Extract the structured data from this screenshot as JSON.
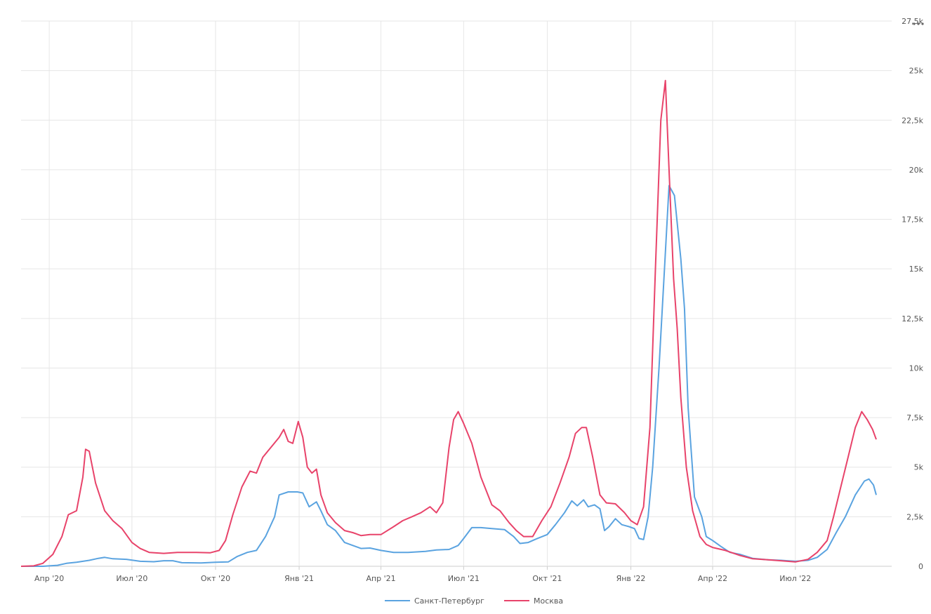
{
  "chart_data": {
    "type": "line",
    "grid": true,
    "legend_position": "bottom-center",
    "ylim": [
      0,
      27500
    ],
    "y_ticks": [
      {
        "value": 0,
        "label": "0"
      },
      {
        "value": 2500,
        "label": "2,5k"
      },
      {
        "value": 5000,
        "label": "5k"
      },
      {
        "value": 7500,
        "label": "7,5k"
      },
      {
        "value": 10000,
        "label": "10k"
      },
      {
        "value": 12500,
        "label": "12,5k"
      },
      {
        "value": 15000,
        "label": "15k"
      },
      {
        "value": 17500,
        "label": "17,5k"
      },
      {
        "value": 20000,
        "label": "20k"
      },
      {
        "value": 22500,
        "label": "22,5k"
      },
      {
        "value": 25000,
        "label": "25k"
      },
      {
        "value": 27500,
        "label": "27,5k"
      }
    ],
    "x_range": [
      "2020-03-01",
      "2022-10-15"
    ],
    "x_ticks": [
      {
        "date": "2020-04-01",
        "label": "Апр '20"
      },
      {
        "date": "2020-07-01",
        "label": "Июл '20"
      },
      {
        "date": "2020-10-01",
        "label": "Окт '20"
      },
      {
        "date": "2021-01-01",
        "label": "Янв '21"
      },
      {
        "date": "2021-04-01",
        "label": "Апр '21"
      },
      {
        "date": "2021-07-01",
        "label": "Июл '21"
      },
      {
        "date": "2021-10-01",
        "label": "Окт '21"
      },
      {
        "date": "2022-01-01",
        "label": "Янв '22"
      },
      {
        "date": "2022-04-01",
        "label": "Апр '22"
      },
      {
        "date": "2022-07-01",
        "label": "Июл '22"
      }
    ],
    "series": [
      {
        "name": "Санкт-Петербург",
        "color": "#5aa3e0",
        "points": [
          [
            "2020-03-01",
            0
          ],
          [
            "2020-03-25",
            0
          ],
          [
            "2020-04-10",
            50
          ],
          [
            "2020-04-20",
            150
          ],
          [
            "2020-05-01",
            200
          ],
          [
            "2020-05-15",
            300
          ],
          [
            "2020-05-25",
            400
          ],
          [
            "2020-06-01",
            450
          ],
          [
            "2020-06-10",
            380
          ],
          [
            "2020-06-25",
            350
          ],
          [
            "2020-07-10",
            250
          ],
          [
            "2020-07-25",
            230
          ],
          [
            "2020-08-05",
            280
          ],
          [
            "2020-08-15",
            280
          ],
          [
            "2020-08-25",
            180
          ],
          [
            "2020-09-15",
            170
          ],
          [
            "2020-10-01",
            200
          ],
          [
            "2020-10-15",
            220
          ],
          [
            "2020-10-25",
            500
          ],
          [
            "2020-11-05",
            700
          ],
          [
            "2020-11-15",
            800
          ],
          [
            "2020-11-25",
            1500
          ],
          [
            "2020-12-05",
            2500
          ],
          [
            "2020-12-10",
            3600
          ],
          [
            "2020-12-20",
            3750
          ],
          [
            "2020-12-30",
            3750
          ],
          [
            "2021-01-05",
            3700
          ],
          [
            "2021-01-12",
            3000
          ],
          [
            "2021-01-20",
            3250
          ],
          [
            "2021-01-25",
            2800
          ],
          [
            "2021-02-01",
            2100
          ],
          [
            "2021-02-10",
            1800
          ],
          [
            "2021-02-20",
            1200
          ],
          [
            "2021-03-01",
            1050
          ],
          [
            "2021-03-10",
            900
          ],
          [
            "2021-03-20",
            920
          ],
          [
            "2021-04-01",
            800
          ],
          [
            "2021-04-15",
            700
          ],
          [
            "2021-05-01",
            700
          ],
          [
            "2021-05-20",
            750
          ],
          [
            "2021-06-01",
            820
          ],
          [
            "2021-06-15",
            850
          ],
          [
            "2021-06-25",
            1050
          ],
          [
            "2021-07-01",
            1400
          ],
          [
            "2021-07-10",
            1950
          ],
          [
            "2021-07-20",
            1950
          ],
          [
            "2021-08-01",
            1900
          ],
          [
            "2021-08-15",
            1850
          ],
          [
            "2021-08-25",
            1500
          ],
          [
            "2021-09-01",
            1150
          ],
          [
            "2021-09-10",
            1200
          ],
          [
            "2021-09-20",
            1400
          ],
          [
            "2021-10-01",
            1600
          ],
          [
            "2021-10-10",
            2100
          ],
          [
            "2021-10-20",
            2700
          ],
          [
            "2021-10-28",
            3300
          ],
          [
            "2021-11-03",
            3050
          ],
          [
            "2021-11-10",
            3350
          ],
          [
            "2021-11-15",
            3000
          ],
          [
            "2021-11-22",
            3100
          ],
          [
            "2021-11-28",
            2900
          ],
          [
            "2021-12-03",
            1800
          ],
          [
            "2021-12-08",
            2000
          ],
          [
            "2021-12-15",
            2400
          ],
          [
            "2021-12-22",
            2100
          ],
          [
            "2021-12-30",
            2000
          ],
          [
            "2022-01-05",
            1900
          ],
          [
            "2022-01-10",
            1400
          ],
          [
            "2022-01-15",
            1350
          ],
          [
            "2022-01-20",
            2500
          ],
          [
            "2022-01-25",
            5000
          ],
          [
            "2022-02-01",
            10000
          ],
          [
            "2022-02-07",
            15000
          ],
          [
            "2022-02-12",
            19200
          ],
          [
            "2022-02-18",
            18700
          ],
          [
            "2022-02-25",
            15500
          ],
          [
            "2022-03-01",
            13000
          ],
          [
            "2022-03-05",
            8000
          ],
          [
            "2022-03-12",
            3500
          ],
          [
            "2022-03-20",
            2500
          ],
          [
            "2022-03-25",
            1500
          ],
          [
            "2022-04-01",
            1300
          ],
          [
            "2022-04-10",
            1000
          ],
          [
            "2022-04-20",
            700
          ],
          [
            "2022-05-01",
            600
          ],
          [
            "2022-05-15",
            400
          ],
          [
            "2022-06-01",
            330
          ],
          [
            "2022-06-15",
            300
          ],
          [
            "2022-07-01",
            250
          ],
          [
            "2022-07-15",
            300
          ],
          [
            "2022-07-25",
            450
          ],
          [
            "2022-08-05",
            850
          ],
          [
            "2022-08-15",
            1700
          ],
          [
            "2022-08-25",
            2500
          ],
          [
            "2022-09-05",
            3600
          ],
          [
            "2022-09-15",
            4300
          ],
          [
            "2022-09-20",
            4400
          ],
          [
            "2022-09-25",
            4100
          ],
          [
            "2022-09-28",
            3600
          ]
        ]
      },
      {
        "name": "Москва",
        "color": "#e8436a",
        "points": [
          [
            "2020-03-01",
            0
          ],
          [
            "2020-03-15",
            20
          ],
          [
            "2020-03-25",
            150
          ],
          [
            "2020-04-05",
            600
          ],
          [
            "2020-04-15",
            1500
          ],
          [
            "2020-04-22",
            2600
          ],
          [
            "2020-05-01",
            2800
          ],
          [
            "2020-05-08",
            4500
          ],
          [
            "2020-05-11",
            5900
          ],
          [
            "2020-05-15",
            5800
          ],
          [
            "2020-05-22",
            4200
          ],
          [
            "2020-06-01",
            2800
          ],
          [
            "2020-06-10",
            2300
          ],
          [
            "2020-06-20",
            1900
          ],
          [
            "2020-07-01",
            1200
          ],
          [
            "2020-07-10",
            900
          ],
          [
            "2020-07-20",
            700
          ],
          [
            "2020-08-05",
            650
          ],
          [
            "2020-08-20",
            700
          ],
          [
            "2020-09-10",
            700
          ],
          [
            "2020-09-25",
            680
          ],
          [
            "2020-10-05",
            800
          ],
          [
            "2020-10-12",
            1300
          ],
          [
            "2020-10-20",
            2600
          ],
          [
            "2020-10-30",
            4000
          ],
          [
            "2020-11-08",
            4800
          ],
          [
            "2020-11-15",
            4700
          ],
          [
            "2020-11-22",
            5500
          ],
          [
            "2020-12-01",
            6000
          ],
          [
            "2020-12-10",
            6500
          ],
          [
            "2020-12-15",
            6900
          ],
          [
            "2020-12-20",
            6300
          ],
          [
            "2020-12-25",
            6200
          ],
          [
            "2020-12-31",
            7300
          ],
          [
            "2021-01-05",
            6500
          ],
          [
            "2021-01-10",
            5000
          ],
          [
            "2021-01-15",
            4700
          ],
          [
            "2021-01-20",
            4900
          ],
          [
            "2021-01-25",
            3600
          ],
          [
            "2021-02-01",
            2700
          ],
          [
            "2021-02-10",
            2200
          ],
          [
            "2021-02-20",
            1800
          ],
          [
            "2021-03-01",
            1700
          ],
          [
            "2021-03-10",
            1550
          ],
          [
            "2021-03-20",
            1600
          ],
          [
            "2021-04-01",
            1600
          ],
          [
            "2021-04-15",
            2000
          ],
          [
            "2021-04-25",
            2300
          ],
          [
            "2021-05-05",
            2500
          ],
          [
            "2021-05-15",
            2700
          ],
          [
            "2021-05-25",
            3000
          ],
          [
            "2021-06-01",
            2700
          ],
          [
            "2021-06-08",
            3200
          ],
          [
            "2021-06-15",
            6000
          ],
          [
            "2021-06-20",
            7400
          ],
          [
            "2021-06-25",
            7800
          ],
          [
            "2021-07-01",
            7200
          ],
          [
            "2021-07-10",
            6200
          ],
          [
            "2021-07-20",
            4500
          ],
          [
            "2021-08-01",
            3100
          ],
          [
            "2021-08-10",
            2800
          ],
          [
            "2021-08-20",
            2200
          ],
          [
            "2021-08-28",
            1800
          ],
          [
            "2021-09-05",
            1500
          ],
          [
            "2021-09-15",
            1500
          ],
          [
            "2021-09-25",
            2300
          ],
          [
            "2021-10-05",
            3000
          ],
          [
            "2021-10-15",
            4200
          ],
          [
            "2021-10-25",
            5500
          ],
          [
            "2021-11-01",
            6700
          ],
          [
            "2021-11-08",
            7000
          ],
          [
            "2021-11-13",
            7000
          ],
          [
            "2021-11-20",
            5500
          ],
          [
            "2021-11-28",
            3600
          ],
          [
            "2021-12-05",
            3200
          ],
          [
            "2021-12-15",
            3150
          ],
          [
            "2021-12-25",
            2700
          ],
          [
            "2022-01-01",
            2300
          ],
          [
            "2022-01-08",
            2100
          ],
          [
            "2022-01-15",
            3000
          ],
          [
            "2022-01-22",
            7000
          ],
          [
            "2022-01-28",
            15000
          ],
          [
            "2022-02-03",
            22500
          ],
          [
            "2022-02-08",
            24500
          ],
          [
            "2022-02-12",
            20000
          ],
          [
            "2022-02-17",
            14500
          ],
          [
            "2022-02-21",
            12000
          ],
          [
            "2022-02-25",
            8500
          ],
          [
            "2022-03-03",
            5000
          ],
          [
            "2022-03-10",
            2800
          ],
          [
            "2022-03-18",
            1500
          ],
          [
            "2022-03-25",
            1100
          ],
          [
            "2022-04-01",
            950
          ],
          [
            "2022-04-15",
            800
          ],
          [
            "2022-05-01",
            550
          ],
          [
            "2022-05-15",
            380
          ],
          [
            "2022-06-01",
            330
          ],
          [
            "2022-06-15",
            280
          ],
          [
            "2022-07-01",
            220
          ],
          [
            "2022-07-15",
            350
          ],
          [
            "2022-07-25",
            700
          ],
          [
            "2022-08-05",
            1300
          ],
          [
            "2022-08-12",
            2500
          ],
          [
            "2022-08-20",
            4000
          ],
          [
            "2022-08-28",
            5500
          ],
          [
            "2022-09-05",
            7000
          ],
          [
            "2022-09-12",
            7800
          ],
          [
            "2022-09-18",
            7400
          ],
          [
            "2022-09-24",
            6900
          ],
          [
            "2022-09-28",
            6400
          ]
        ]
      }
    ]
  }
}
